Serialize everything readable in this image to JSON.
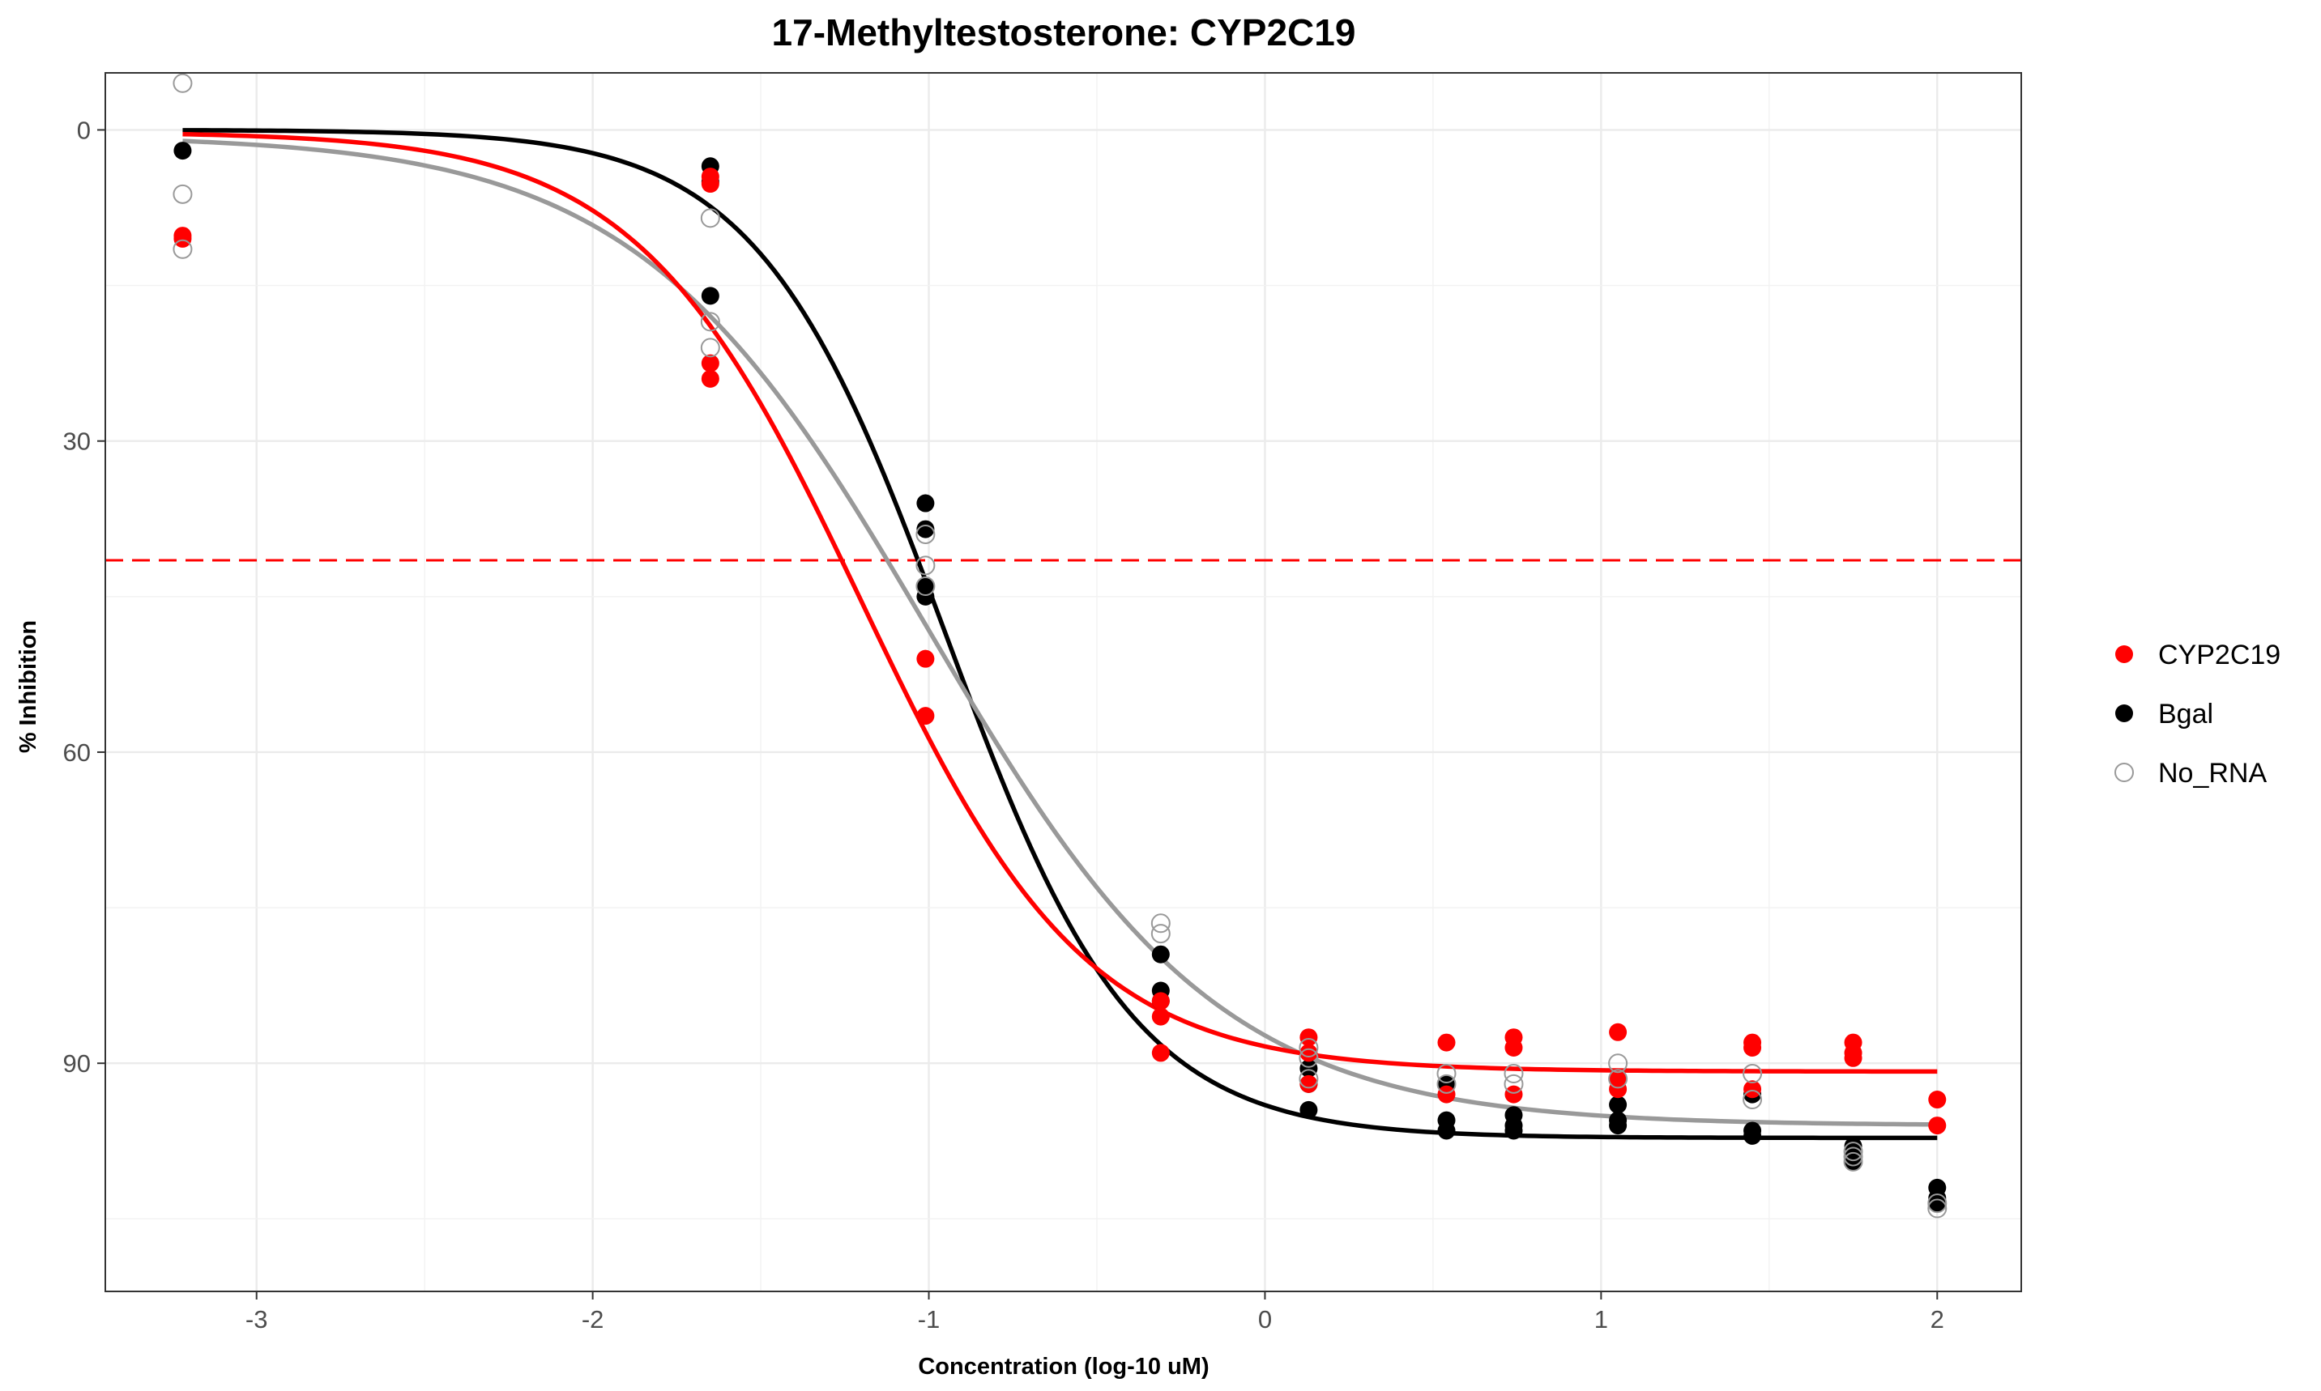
{
  "chart_data": {
    "type": "scatter",
    "title": "17-Methyltestosterone: CYP2C19",
    "xlabel": "Concentration (log-10 uM)",
    "ylabel": "% Inhibition",
    "xlim": [
      -3.45,
      2.25
    ],
    "ylim": [
      112,
      -5.5
    ],
    "y_reversed": true,
    "x_ticks": [
      -3,
      -2,
      -1,
      0,
      1,
      2
    ],
    "x_tick_labels": [
      "-3",
      "-2",
      "-1",
      "0",
      "1",
      "2"
    ],
    "y_ticks": [
      0,
      30,
      60,
      90
    ],
    "y_tick_labels": [
      "0",
      "30",
      "60",
      "90"
    ],
    "grid": true,
    "legend_position": "right",
    "threshold_line": {
      "y": 41.5,
      "color": "#ff0000",
      "style": "dashed"
    },
    "series": [
      {
        "name": "CYP2C19",
        "color": "#ff0000",
        "marker": "filled-circle",
        "points": [
          [
            -3.22,
            10.2
          ],
          [
            -3.22,
            10.5
          ],
          [
            -1.65,
            4.5
          ],
          [
            -1.65,
            5.2
          ],
          [
            -1.65,
            22.5
          ],
          [
            -1.65,
            24.0
          ],
          [
            -1.01,
            51.0
          ],
          [
            -1.01,
            56.5
          ],
          [
            -0.31,
            84.0
          ],
          [
            -0.31,
            85.5
          ],
          [
            -0.31,
            89.0
          ],
          [
            0.13,
            87.5
          ],
          [
            0.13,
            89.0
          ],
          [
            0.13,
            92.0
          ],
          [
            0.54,
            88.0
          ],
          [
            0.54,
            93.0
          ],
          [
            0.74,
            87.5
          ],
          [
            0.74,
            88.5
          ],
          [
            0.74,
            93.0
          ],
          [
            1.05,
            87.0
          ],
          [
            1.05,
            91.5
          ],
          [
            1.05,
            92.5
          ],
          [
            1.45,
            88.0
          ],
          [
            1.45,
            88.5
          ],
          [
            1.45,
            92.5
          ],
          [
            1.75,
            88.0
          ],
          [
            1.75,
            89.0
          ],
          [
            1.75,
            89.5
          ],
          [
            2.0,
            93.5
          ],
          [
            2.0,
            96.0
          ]
        ],
        "fit": {
          "bottom": 0.2,
          "top": 90.8,
          "log_ic50": -1.2,
          "hill": 1.3
        }
      },
      {
        "name": "Bgal",
        "color": "#000000",
        "marker": "filled-circle",
        "points": [
          [
            -3.22,
            2.0
          ],
          [
            -1.65,
            3.5
          ],
          [
            -1.65,
            5.0
          ],
          [
            -1.65,
            16.0
          ],
          [
            -1.01,
            36.0
          ],
          [
            -1.01,
            38.5
          ],
          [
            -1.01,
            44.0
          ],
          [
            -1.01,
            45.0
          ],
          [
            -0.31,
            79.5
          ],
          [
            -0.31,
            83.0
          ],
          [
            -0.31,
            84.0
          ],
          [
            0.13,
            90.5
          ],
          [
            0.13,
            92.0
          ],
          [
            0.13,
            94.5
          ],
          [
            0.54,
            92.0
          ],
          [
            0.54,
            95.5
          ],
          [
            0.54,
            96.5
          ],
          [
            0.74,
            95.0
          ],
          [
            0.74,
            96.0
          ],
          [
            0.74,
            96.5
          ],
          [
            1.05,
            94.0
          ],
          [
            1.05,
            95.5
          ],
          [
            1.05,
            96.0
          ],
          [
            1.45,
            93.0
          ],
          [
            1.45,
            96.5
          ],
          [
            1.45,
            97.0
          ],
          [
            1.75,
            98.0
          ],
          [
            1.75,
            99.0
          ],
          [
            1.75,
            99.5
          ],
          [
            2.0,
            102.0
          ],
          [
            2.0,
            103.0
          ],
          [
            2.0,
            103.5
          ]
        ],
        "fit": {
          "bottom": 0.0,
          "top": 97.2,
          "log_ic50": -0.95,
          "hill": 1.55
        }
      },
      {
        "name": "No_RNA",
        "color": "#999999",
        "marker": "open-circle",
        "points": [
          [
            -3.22,
            -4.5
          ],
          [
            -3.22,
            6.2
          ],
          [
            -3.22,
            11.5
          ],
          [
            -1.65,
            8.5
          ],
          [
            -1.65,
            18.5
          ],
          [
            -1.65,
            21.0
          ],
          [
            -1.01,
            39.0
          ],
          [
            -1.01,
            42.0
          ],
          [
            -1.01,
            44.0
          ],
          [
            -0.31,
            76.5
          ],
          [
            -0.31,
            77.5
          ],
          [
            0.13,
            88.5
          ],
          [
            0.13,
            89.5
          ],
          [
            0.13,
            91.5
          ],
          [
            0.54,
            91.0
          ],
          [
            0.54,
            92.0
          ],
          [
            0.74,
            91.0
          ],
          [
            0.74,
            92.0
          ],
          [
            1.05,
            90.0
          ],
          [
            1.05,
            91.5
          ],
          [
            1.45,
            91.0
          ],
          [
            1.45,
            93.5
          ],
          [
            1.75,
            98.5
          ],
          [
            1.75,
            99.0
          ],
          [
            1.75,
            99.5
          ],
          [
            2.0,
            103.5
          ],
          [
            2.0,
            104.0
          ]
        ],
        "fit": {
          "bottom": 0.5,
          "top": 96.0,
          "log_ic50": -1.0,
          "hill": 1.0
        }
      }
    ]
  }
}
